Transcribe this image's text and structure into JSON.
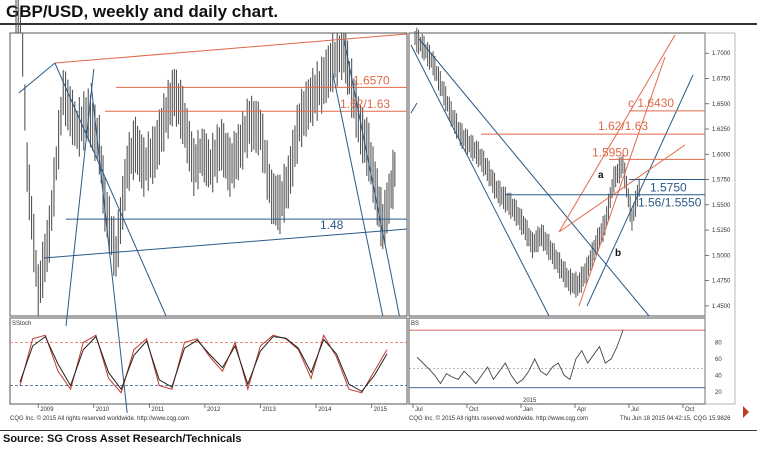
{
  "title": "GBP/USD, weekly and daily chart.",
  "source": "Source: SG Cross Asset Research/Technicals",
  "colors": {
    "price": "#555555",
    "orange": "#e06a4a",
    "blue": "#2a5a88",
    "stoch_red": "#c0392b",
    "stoch_black": "#222222"
  },
  "chart_data": [
    {
      "type": "line",
      "panel": "weekly",
      "x_labels": [
        "2009",
        "2010",
        "2011",
        "2012",
        "2013",
        "2014",
        "2015"
      ],
      "levels": [
        {
          "label": "1.6570",
          "value": 1.657,
          "color": "orange"
        },
        {
          "label": "1.62/1.63",
          "value": 1.625,
          "color": "orange"
        },
        {
          "label": "1.48",
          "value": 1.48,
          "color": "blue"
        }
      ],
      "ylim": [
        1.35,
        1.73
      ],
      "series": [
        {
          "x": [
            2008.6,
            2008.8,
            2009.0,
            2009.2,
            2009.45,
            2009.7,
            2009.9,
            2010.1,
            2010.2,
            2010.4,
            2010.6,
            2010.75,
            2010.9,
            2011.1,
            2011.3,
            2011.45,
            2011.6,
            2011.8,
            2011.95,
            2012.1,
            2012.3,
            2012.45,
            2012.6,
            2012.8,
            2013.0,
            2013.2,
            2013.35,
            2013.5,
            2013.7,
            2013.9,
            2014.1,
            2014.3,
            2014.5,
            2014.6,
            2014.8,
            2014.95,
            2015.1,
            2015.2,
            2015.35,
            2015.45
          ],
          "values": [
            1.95,
            1.55,
            1.38,
            1.46,
            1.65,
            1.6,
            1.62,
            1.58,
            1.5,
            1.43,
            1.55,
            1.58,
            1.55,
            1.57,
            1.62,
            1.65,
            1.62,
            1.55,
            1.57,
            1.55,
            1.58,
            1.55,
            1.57,
            1.61,
            1.6,
            1.51,
            1.5,
            1.53,
            1.61,
            1.64,
            1.66,
            1.69,
            1.71,
            1.67,
            1.6,
            1.57,
            1.51,
            1.47,
            1.52,
            1.56
          ]
        }
      ]
    },
    {
      "type": "line",
      "panel": "daily",
      "x_labels": [
        "Jul",
        "Oct",
        "Jan",
        "Apr",
        "Jul",
        "Oct"
      ],
      "ylim": [
        1.44,
        1.72
      ],
      "y_ticks": [
        "1.7000",
        "1.6750",
        "1.6500",
        "1.6250",
        "1.6000",
        "1.5750",
        "1.5500",
        "1.5250",
        "1.5000",
        "1.4750",
        "1.4500"
      ],
      "levels": [
        {
          "label": "c  1.6430",
          "value": 1.643,
          "color": "orange"
        },
        {
          "label": "1.62/1.63",
          "value": 1.62,
          "color": "orange"
        },
        {
          "label": "1.5950",
          "value": 1.595,
          "color": "orange"
        },
        {
          "label": "1.5750",
          "value": 1.575,
          "color": "blue"
        },
        {
          "label": "1.56/1.5550",
          "value": 1.56,
          "color": "blue"
        }
      ],
      "annotations": [
        "a",
        "b",
        "c"
      ],
      "series": [
        {
          "x": [
            0,
            8,
            16,
            24,
            32,
            40,
            48,
            56,
            64,
            72,
            80,
            88,
            96,
            104,
            112,
            120,
            128,
            136,
            144,
            152,
            160,
            168,
            176,
            184,
            192,
            200
          ],
          "values": [
            1.715,
            1.705,
            1.69,
            1.665,
            1.64,
            1.62,
            1.61,
            1.6,
            1.585,
            1.565,
            1.555,
            1.545,
            1.53,
            1.51,
            1.52,
            1.505,
            1.49,
            1.475,
            1.47,
            1.485,
            1.51,
            1.53,
            1.575,
            1.59,
            1.535,
            1.575
          ]
        }
      ]
    },
    {
      "type": "line",
      "panel": "weekly-stochastic",
      "label": "SStoch",
      "ylim": [
        0,
        100
      ],
      "series": [
        {
          "name": "%K",
          "values": [
            20,
            85,
            90,
            40,
            15,
            80,
            90,
            30,
            10,
            70,
            85,
            20,
            15,
            80,
            85,
            60,
            40,
            80,
            15,
            75,
            90,
            85,
            70,
            30,
            90,
            60,
            15,
            10,
            40,
            70
          ]
        },
        {
          "name": "%D",
          "values": [
            25,
            75,
            88,
            50,
            20,
            70,
            88,
            38,
            15,
            62,
            82,
            28,
            18,
            72,
            83,
            63,
            45,
            75,
            22,
            68,
            88,
            86,
            72,
            38,
            84,
            64,
            22,
            12,
            34,
            64
          ]
        }
      ]
    },
    {
      "type": "line",
      "panel": "daily-stochastic",
      "label": "BS",
      "y_ticks": [
        "80",
        "60",
        "40",
        "20"
      ],
      "ylim": [
        10,
        100
      ],
      "series": [
        {
          "values": [
            62,
            55,
            48,
            40,
            30,
            42,
            38,
            35,
            45,
            38,
            30,
            40,
            50,
            35,
            45,
            55,
            40,
            30,
            35,
            45,
            60,
            45,
            40,
            50,
            55,
            40,
            35,
            60,
            70,
            55,
            65,
            75,
            55,
            60,
            75,
            95
          ]
        }
      ]
    }
  ],
  "axis": {
    "weekly_year_labels": [
      "2009",
      "2010",
      "2011",
      "2012",
      "2013",
      "2014",
      "2015"
    ],
    "daily_month_labels": [
      "Jul",
      "Oct",
      "Jan",
      "Apr",
      "Jul",
      "Oct"
    ],
    "daily_year_label": "2015"
  },
  "footer": {
    "left": "CQG Inc. © 2015 All rights reserved worldwide. http://www.cqg.com",
    "right_left": "CQG Inc. © 2015 All rights reserved worldwide. http://www.cqg.com",
    "right_right": "Thu Jun 18 2015 04:42:15, CQG 15.9826"
  }
}
